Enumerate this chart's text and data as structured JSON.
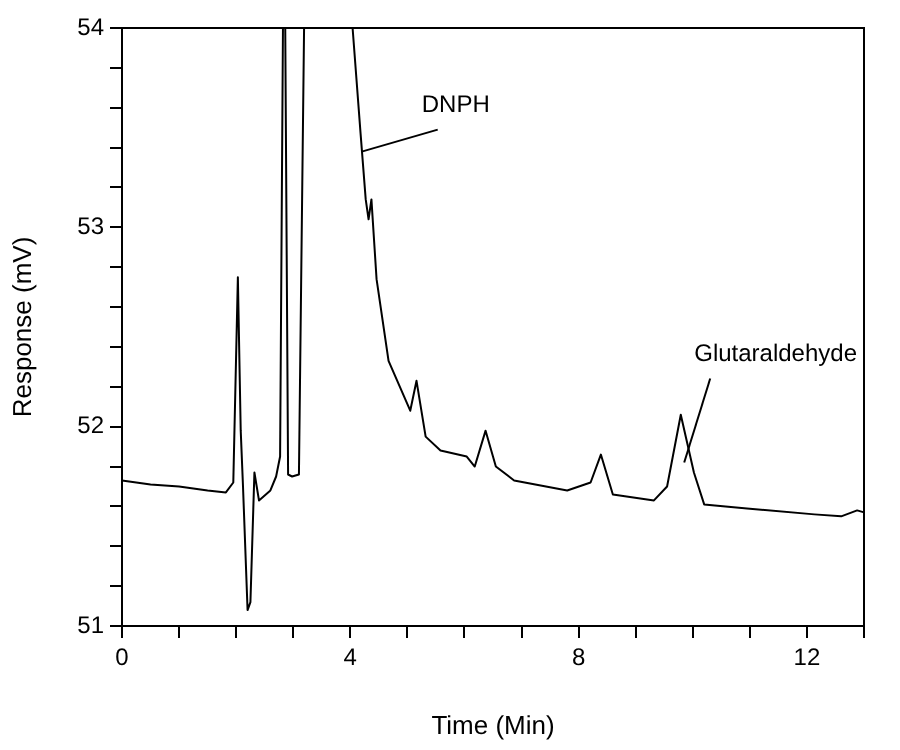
{
  "chart_data": {
    "type": "line",
    "xlabel": "Time (Min)",
    "ylabel": "Response (mV)",
    "x": [
      0,
      0.5,
      1.0,
      1.5,
      1.82,
      1.95,
      2.03,
      2.08,
      2.12,
      2.2,
      2.25,
      2.32,
      2.4,
      2.6,
      2.7,
      2.77,
      2.82,
      2.86,
      2.91,
      2.98,
      3.1,
      3.19,
      4.04,
      4.18,
      4.27,
      4.32,
      4.37,
      4.46,
      4.67,
      5.05,
      5.16,
      5.32,
      5.58,
      6.04,
      6.18,
      6.37,
      6.55,
      6.87,
      7.8,
      8.21,
      8.39,
      8.6,
      9.32,
      9.55,
      9.79,
      10.02,
      10.2,
      10.95,
      12.13,
      12.6,
      12.88,
      13
    ],
    "series": [
      {
        "color": "#000000",
        "values": [
          51.73,
          51.71,
          51.7,
          51.68,
          51.67,
          51.72,
          52.75,
          51.98,
          51.7,
          51.08,
          51.12,
          51.77,
          51.63,
          51.68,
          51.75,
          51.85,
          54,
          54,
          51.76,
          51.75,
          51.76,
          54,
          54,
          53.47,
          53.14,
          53.04,
          53.14,
          52.74,
          52.33,
          52.08,
          52.23,
          51.95,
          51.88,
          51.85,
          51.8,
          51.98,
          51.8,
          51.73,
          51.68,
          51.72,
          51.86,
          51.66,
          51.63,
          51.7,
          52.06,
          51.77,
          51.61,
          51.59,
          51.56,
          51.55,
          51.58,
          51.57
        ]
      }
    ],
    "xlim": [
      0,
      13
    ],
    "xticks": [
      0,
      {
        "value": 1,
        "label": null
      },
      {
        "value": 2,
        "label": null
      },
      {
        "value": 3,
        "label": null
      },
      4,
      {
        "value": 5,
        "label": null
      },
      {
        "value": 6,
        "label": null
      },
      {
        "value": 7,
        "label": null
      },
      8,
      {
        "value": 9,
        "label": null
      },
      {
        "value": 10,
        "label": null
      },
      {
        "value": 11,
        "label": null
      },
      12,
      {
        "value": 13,
        "label": null
      }
    ],
    "ylim": [
      51,
      54
    ],
    "yticks": [
      51,
      {
        "value": 51.2,
        "label": null
      },
      {
        "value": 51.4,
        "label": null
      },
      {
        "value": 51.6,
        "label": null
      },
      {
        "value": 51.8,
        "label": null
      },
      52,
      {
        "value": 52.2,
        "label": null
      },
      {
        "value": 52.4,
        "label": null
      },
      {
        "value": 52.6,
        "label": null
      },
      {
        "value": 52.8,
        "label": null
      },
      53,
      {
        "value": 53.2,
        "label": null
      },
      {
        "value": 53.4,
        "label": null
      },
      {
        "value": 53.6,
        "label": null
      },
      {
        "value": 53.8,
        "label": null
      },
      54
    ],
    "annotations": [
      {
        "text": "DNPH",
        "x": 4.2,
        "y": 53.38
      },
      {
        "text": "Glutaraldehyde",
        "x": 9.85,
        "y": 51.82
      }
    ],
    "grid": false,
    "legend": false,
    "marker": "none",
    "line_style": "solid"
  }
}
